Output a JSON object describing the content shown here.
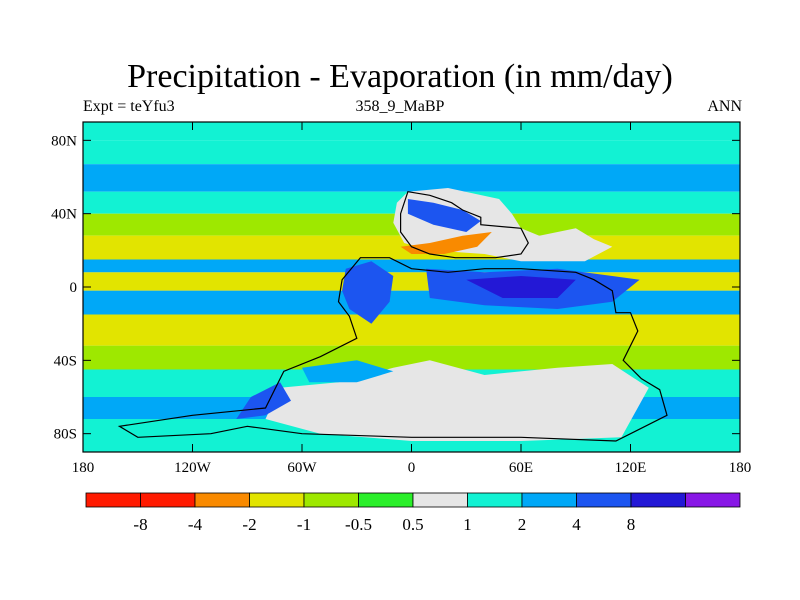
{
  "chart_data": {
    "type": "heatmap",
    "title": "Precipitation - Evaporation (in mm/day)",
    "left_string": "Expt = teYfu3",
    "center_string": "358_9_MaBP",
    "right_string": "ANN",
    "x_ticks": [
      {
        "value": -180,
        "label": "180"
      },
      {
        "value": -120,
        "label": "120W"
      },
      {
        "value": -60,
        "label": "60W"
      },
      {
        "value": 0,
        "label": "0"
      },
      {
        "value": 60,
        "label": "60E"
      },
      {
        "value": 120,
        "label": "120E"
      },
      {
        "value": 180,
        "label": "180"
      }
    ],
    "y_ticks": [
      {
        "value": 80,
        "label": "80N"
      },
      {
        "value": 40,
        "label": "40N"
      },
      {
        "value": 0,
        "label": "0"
      },
      {
        "value": -40,
        "label": "40S"
      },
      {
        "value": -80,
        "label": "80S"
      }
    ],
    "xlim": [
      -180,
      180
    ],
    "ylim": [
      -90,
      90
    ],
    "colorbar": {
      "levels": [
        {
          "label": "-8",
          "color": "#ff1a00"
        },
        {
          "label": "-4",
          "color": "#f98a00"
        },
        {
          "label": "-2",
          "color": "#e2e400"
        },
        {
          "label": "-1",
          "color": "#9ee800"
        },
        {
          "label": "-0.5",
          "color": "#2bef2a"
        },
        {
          "label": "0.5",
          "color": "#e6e6e6"
        },
        {
          "label": "1",
          "color": "#12f2d3"
        },
        {
          "label": "2",
          "color": "#00a8f7"
        },
        {
          "label": "4",
          "color": "#1c55f0"
        },
        {
          "label": "8",
          "color": "#2318d6"
        },
        {
          "label": "",
          "color": "#8817e6"
        }
      ],
      "first_color": "#ff1a00"
    },
    "zonal_bands": [
      {
        "lat": [
          80,
          90
        ],
        "color": "#12f2d3"
      },
      {
        "lat": [
          67,
          80
        ],
        "color": "#12f2d3"
      },
      {
        "lat": [
          52,
          67
        ],
        "color": "#00a8f7"
      },
      {
        "lat": [
          40,
          52
        ],
        "color": "#12f2d3"
      },
      {
        "lat": [
          28,
          40
        ],
        "color": "#9ee800"
      },
      {
        "lat": [
          15,
          28
        ],
        "color": "#e2e400"
      },
      {
        "lat": [
          8,
          15
        ],
        "color": "#00a8f7"
      },
      {
        "lat": [
          -2,
          8
        ],
        "color": "#e2e400"
      },
      {
        "lat": [
          -15,
          -2
        ],
        "color": "#00a8f7"
      },
      {
        "lat": [
          -32,
          -15
        ],
        "color": "#e2e400"
      },
      {
        "lat": [
          -45,
          -32
        ],
        "color": "#9ee800"
      },
      {
        "lat": [
          -60,
          -45
        ],
        "color": "#12f2d3"
      },
      {
        "lat": [
          -72,
          -60
        ],
        "color": "#00a8f7"
      },
      {
        "lat": [
          -90,
          -72
        ],
        "color": "#12f2d3"
      }
    ],
    "regions": [
      {
        "name": "north-continent-moisture",
        "color": "#e6e6e6",
        "points": [
          [
            -2,
            52
          ],
          [
            20,
            54
          ],
          [
            48,
            48
          ],
          [
            55,
            40
          ],
          [
            60,
            32
          ],
          [
            70,
            28
          ],
          [
            90,
            32
          ],
          [
            100,
            26
          ],
          [
            110,
            22
          ],
          [
            95,
            14
          ],
          [
            60,
            14
          ],
          [
            40,
            18
          ],
          [
            10,
            20
          ],
          [
            -4,
            24
          ],
          [
            -10,
            35
          ],
          [
            -8,
            46
          ]
        ]
      },
      {
        "name": "north-continent-blue",
        "color": "#1c55f0",
        "points": [
          [
            -2,
            48
          ],
          [
            12,
            46
          ],
          [
            28,
            42
          ],
          [
            38,
            36
          ],
          [
            30,
            30
          ],
          [
            12,
            34
          ],
          [
            -2,
            40
          ]
        ]
      },
      {
        "name": "north-continent-dry",
        "color": "#f98a00",
        "points": [
          [
            -6,
            22
          ],
          [
            10,
            24
          ],
          [
            28,
            28
          ],
          [
            44,
            30
          ],
          [
            36,
            22
          ],
          [
            18,
            18
          ],
          [
            0,
            18
          ]
        ]
      },
      {
        "name": "west-gondwana-blue",
        "color": "#1c55f0",
        "points": [
          [
            -36,
            10
          ],
          [
            -22,
            14
          ],
          [
            -10,
            6
          ],
          [
            -12,
            -8
          ],
          [
            -22,
            -20
          ],
          [
            -34,
            -12
          ],
          [
            -38,
            -2
          ]
        ]
      },
      {
        "name": "east-equator-blue",
        "color": "#1c55f0",
        "points": [
          [
            8,
            10
          ],
          [
            40,
            8
          ],
          [
            80,
            10
          ],
          [
            110,
            6
          ],
          [
            125,
            4
          ],
          [
            110,
            -8
          ],
          [
            80,
            -12
          ],
          [
            40,
            -10
          ],
          [
            10,
            -6
          ]
        ]
      },
      {
        "name": "east-equator-darkblue",
        "color": "#2318d6",
        "points": [
          [
            30,
            4
          ],
          [
            60,
            6
          ],
          [
            90,
            4
          ],
          [
            80,
            -6
          ],
          [
            50,
            -6
          ]
        ]
      },
      {
        "name": "south-gondwana-land",
        "color": "#e6e6e6",
        "points": [
          [
            -72,
            -55
          ],
          [
            -40,
            -52
          ],
          [
            -10,
            -44
          ],
          [
            10,
            -40
          ],
          [
            40,
            -48
          ],
          [
            80,
            -44
          ],
          [
            110,
            -42
          ],
          [
            130,
            -55
          ],
          [
            115,
            -82
          ],
          [
            60,
            -84
          ],
          [
            0,
            -84
          ],
          [
            -50,
            -80
          ],
          [
            -80,
            -72
          ]
        ]
      },
      {
        "name": "south-blue-patch",
        "color": "#00a8f7",
        "points": [
          [
            -60,
            -44
          ],
          [
            -30,
            -40
          ],
          [
            -10,
            -46
          ],
          [
            -30,
            -52
          ],
          [
            -56,
            -52
          ]
        ]
      },
      {
        "name": "southwest-darkblue",
        "color": "#1c55f0",
        "points": [
          [
            -88,
            -60
          ],
          [
            -72,
            -52
          ],
          [
            -66,
            -62
          ],
          [
            -80,
            -70
          ],
          [
            -96,
            -72
          ]
        ]
      }
    ],
    "coastlines": [
      {
        "name": "laurasia",
        "points": [
          [
            -2,
            52
          ],
          [
            10,
            50
          ],
          [
            22,
            46
          ],
          [
            28,
            42
          ],
          [
            38,
            38
          ],
          [
            38,
            34
          ],
          [
            60,
            32
          ],
          [
            64,
            24
          ],
          [
            60,
            18
          ],
          [
            46,
            16
          ],
          [
            24,
            16
          ],
          [
            10,
            18
          ],
          [
            0,
            22
          ],
          [
            -6,
            30
          ],
          [
            -6,
            40
          ],
          [
            -2,
            52
          ]
        ]
      },
      {
        "name": "gondwana",
        "points": [
          [
            -28,
            16
          ],
          [
            -12,
            16
          ],
          [
            0,
            10
          ],
          [
            20,
            8
          ],
          [
            40,
            10
          ],
          [
            60,
            10
          ],
          [
            90,
            8
          ],
          [
            100,
            4
          ],
          [
            110,
            -2
          ],
          [
            112,
            -14
          ],
          [
            120,
            -14
          ],
          [
            124,
            -24
          ],
          [
            116,
            -40
          ],
          [
            126,
            -50
          ],
          [
            136,
            -56
          ],
          [
            140,
            -70
          ],
          [
            112,
            -84
          ],
          [
            60,
            -82
          ],
          [
            0,
            -82
          ],
          [
            -60,
            -80
          ],
          [
            -90,
            -76
          ],
          [
            -110,
            -80
          ],
          [
            -150,
            -82
          ],
          [
            -160,
            -76
          ],
          [
            -120,
            -70
          ],
          [
            -80,
            -66
          ],
          [
            -70,
            -46
          ],
          [
            -50,
            -38
          ],
          [
            -30,
            -28
          ],
          [
            -34,
            -16
          ],
          [
            -40,
            -8
          ],
          [
            -38,
            4
          ],
          [
            -28,
            16
          ]
        ]
      }
    ]
  }
}
